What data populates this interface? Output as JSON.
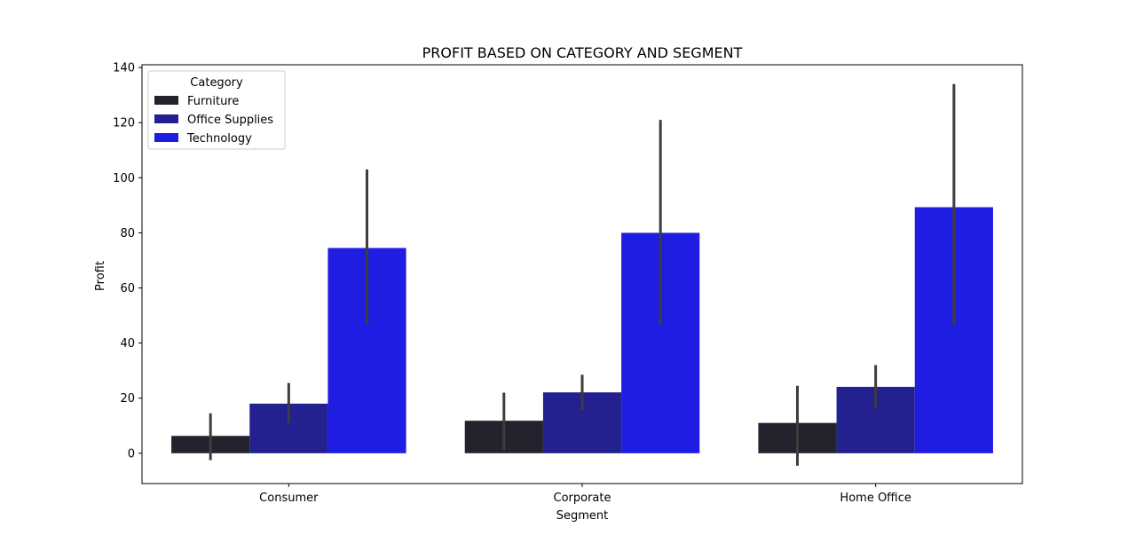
{
  "chart_data": {
    "type": "bar",
    "title": "PROFIT BASED ON CATEGORY AND SEGMENT",
    "xlabel": "Segment",
    "ylabel": "Profit",
    "ylim": [
      -11,
      141
    ],
    "yticks": [
      0,
      20,
      40,
      60,
      80,
      100,
      120,
      140
    ],
    "categories": [
      "Consumer",
      "Corporate",
      "Home Office"
    ],
    "legend": {
      "title": "Category",
      "placement": "upper-left"
    },
    "grid": false,
    "series": [
      {
        "name": "Furniture",
        "color": "#24232d",
        "values": [
          6.3,
          11.8,
          11.0
        ],
        "err_low": [
          -2.5,
          1.0,
          -4.5
        ],
        "err_high": [
          14.5,
          22.0,
          24.5
        ]
      },
      {
        "name": "Office Supplies",
        "color": "#23218f",
        "values": [
          18.0,
          22.1,
          24.1
        ],
        "err_low": [
          11.0,
          15.5,
          16.5
        ],
        "err_high": [
          25.5,
          28.5,
          32.0
        ]
      },
      {
        "name": "Technology",
        "color": "#1f1de2",
        "values": [
          74.5,
          80.0,
          89.3
        ],
        "err_low": [
          47.0,
          46.5,
          46.5
        ],
        "err_high": [
          103.0,
          121.0,
          134.0
        ]
      }
    ]
  }
}
